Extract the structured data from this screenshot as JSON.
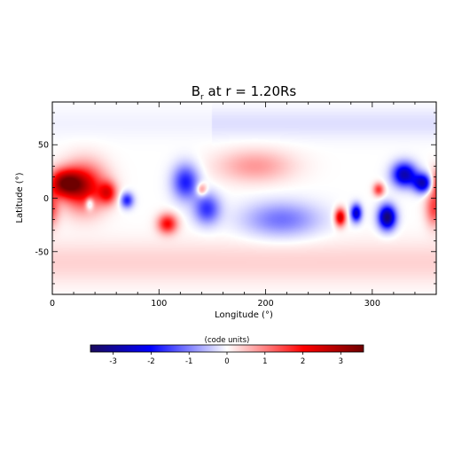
{
  "chart_data": {
    "type": "heatmap",
    "title_main": "B",
    "title_sub": "r",
    "title_rest": " at r = 1.20Rs",
    "xlabel": "Longitude (°)",
    "ylabel": "Latitude (°)",
    "xlim": [
      0,
      360
    ],
    "ylim": [
      -90,
      90
    ],
    "x_ticks": [
      0,
      100,
      200,
      300
    ],
    "y_ticks": [
      -50,
      0,
      50
    ],
    "colorbar": {
      "label": "(code units)",
      "range": [
        -3.6,
        3.6
      ],
      "ticks": [
        "-3",
        "-2",
        "-1",
        "0",
        "1",
        "2",
        "3"
      ],
      "tick_values": [
        -3,
        -2,
        -1,
        0,
        1,
        2,
        3
      ],
      "colormap": [
        "#1a0a5c",
        "#0000ff",
        "#ffffff",
        "#ff0000",
        "#6e0000"
      ]
    },
    "features": [
      {
        "lon": 12,
        "lat": 14,
        "value": 3.0,
        "width_lon": 16,
        "width_lat": 12
      },
      {
        "lon": 30,
        "lat": 10,
        "value": 2.2,
        "width_lon": 20,
        "width_lat": 22
      },
      {
        "lon": 52,
        "lat": 5,
        "value": 1.8,
        "width_lon": 8,
        "width_lat": 10
      },
      {
        "lon": 35,
        "lat": -5,
        "value": -1.4,
        "width_lon": 4,
        "width_lat": 6
      },
      {
        "lon": 70,
        "lat": -2,
        "value": -1.8,
        "width_lon": 6,
        "width_lat": 7
      },
      {
        "lon": 108,
        "lat": -24,
        "value": 2.0,
        "width_lon": 9,
        "width_lat": 9
      },
      {
        "lon": 125,
        "lat": 15,
        "value": -1.8,
        "width_lon": 12,
        "width_lat": 16
      },
      {
        "lon": 145,
        "lat": -10,
        "value": -1.6,
        "width_lon": 12,
        "width_lat": 14
      },
      {
        "lon": 140,
        "lat": 8,
        "value": 1.2,
        "width_lon": 5,
        "width_lat": 6
      },
      {
        "lon": 190,
        "lat": 30,
        "value": 0.8,
        "width_lon": 35,
        "width_lat": 15
      },
      {
        "lon": 215,
        "lat": -20,
        "value": -1.1,
        "width_lon": 35,
        "width_lat": 16
      },
      {
        "lon": 270,
        "lat": -18,
        "value": 2.6,
        "width_lon": 5,
        "width_lat": 8
      },
      {
        "lon": 285,
        "lat": -14,
        "value": -2.6,
        "width_lon": 5,
        "width_lat": 8
      },
      {
        "lon": 306,
        "lat": 8,
        "value": 1.6,
        "width_lon": 5,
        "width_lat": 6
      },
      {
        "lon": 314,
        "lat": -18,
        "value": -3.4,
        "width_lon": 8,
        "width_lat": 11
      },
      {
        "lon": 330,
        "lat": 22,
        "value": -2.8,
        "width_lon": 11,
        "width_lat": 11
      },
      {
        "lon": 348,
        "lat": 14,
        "value": -3.0,
        "width_lon": 9,
        "width_lat": 9
      },
      {
        "lon": 358,
        "lat": -10,
        "value": 1.4,
        "width_lon": 8,
        "width_lat": 16
      }
    ]
  }
}
